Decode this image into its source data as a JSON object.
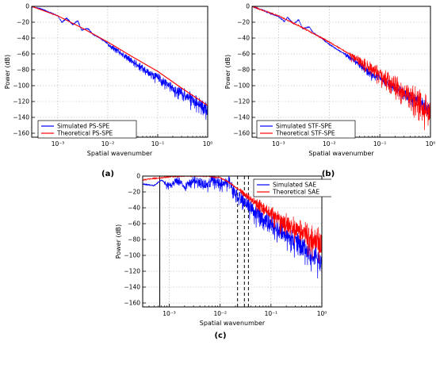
{
  "chart_data": [
    {
      "type": "line",
      "panel_label": "(a)",
      "xlabel": "Spatial wavenumber",
      "ylabel": "Power (dB)",
      "xscale": "log",
      "xlim": [
        0.0003,
        1.0
      ],
      "ylim": [
        -165,
        0
      ],
      "grid": true,
      "legend_position": "lower-left",
      "x_ticks": [
        {
          "value": 0.001,
          "label": "10⁻³"
        },
        {
          "value": 0.01,
          "label": "10⁻²"
        },
        {
          "value": 0.1,
          "label": "10⁻¹"
        },
        {
          "value": 1.0,
          "label": "10⁰"
        }
      ],
      "y_ticks": [
        {
          "value": 0,
          "label": "0"
        },
        {
          "value": -20,
          "label": "−20"
        },
        {
          "value": -40,
          "label": "−40"
        },
        {
          "value": -60,
          "label": "−60"
        },
        {
          "value": -80,
          "label": "−80"
        },
        {
          "value": -100,
          "label": "−100"
        },
        {
          "value": -120,
          "label": "−120"
        },
        {
          "value": -140,
          "label": "−140"
        },
        {
          "value": -160,
          "label": "−160"
        }
      ],
      "series": [
        {
          "name": "Simulated PS-SPE",
          "color": "#0000ff",
          "style": "noisy",
          "x": [
            0.0003,
            0.0005,
            0.0007,
            0.001,
            0.0012,
            0.0015,
            0.002,
            0.0025,
            0.003,
            0.004,
            0.005,
            0.007,
            0.01,
            0.015,
            0.02,
            0.03,
            0.05,
            0.07,
            0.1,
            0.15,
            0.2,
            0.3,
            0.5,
            0.7,
            1.0
          ],
          "y": [
            0,
            -4,
            -8,
            -12,
            -20,
            -15,
            -23,
            -18,
            -30,
            -28,
            -35,
            -40,
            -47,
            -55,
            -60,
            -68,
            -77,
            -85,
            -88,
            -96,
            -102,
            -108,
            -116,
            -122,
            -130
          ],
          "noise_start": 0.01,
          "noise_amp_start": 3,
          "noise_amp_end": 14
        },
        {
          "name": "Theoretical PS-SPE",
          "color": "#ff0000",
          "x": [
            0.0003,
            0.001,
            0.003,
            0.01,
            0.03,
            0.1,
            0.3,
            1.0
          ],
          "y": [
            0,
            -12,
            -27,
            -45,
            -63,
            -82,
            -103,
            -125
          ]
        }
      ]
    },
    {
      "type": "line",
      "panel_label": "(b)",
      "xlabel": "Spatial wavenumber",
      "ylabel": "Power (dB)",
      "xscale": "log",
      "xlim": [
        0.0003,
        1.0
      ],
      "ylim": [
        -165,
        0
      ],
      "grid": true,
      "legend_position": "lower-left",
      "x_ticks": [
        {
          "value": 0.001,
          "label": "10⁻³"
        },
        {
          "value": 0.01,
          "label": "10⁻²"
        },
        {
          "value": 0.1,
          "label": "10⁻¹"
        },
        {
          "value": 1.0,
          "label": "10⁰"
        }
      ],
      "y_ticks": [
        {
          "value": 0,
          "label": "0"
        },
        {
          "value": -20,
          "label": "−20"
        },
        {
          "value": -40,
          "label": "−40"
        },
        {
          "value": -60,
          "label": "−60"
        },
        {
          "value": -80,
          "label": "−80"
        },
        {
          "value": -100,
          "label": "−100"
        },
        {
          "value": -120,
          "label": "−120"
        },
        {
          "value": -140,
          "label": "−140"
        },
        {
          "value": -160,
          "label": "−160"
        }
      ],
      "series": [
        {
          "name": "Simulated STF-SPE",
          "color": "#0000ff",
          "style": "noisy",
          "x": [
            0.0003,
            0.0005,
            0.0007,
            0.001,
            0.0013,
            0.0015,
            0.002,
            0.0025,
            0.003,
            0.004,
            0.005,
            0.007,
            0.01,
            0.015,
            0.02,
            0.03,
            0.05,
            0.07,
            0.1,
            0.15,
            0.2,
            0.3,
            0.5,
            0.7,
            1.0
          ],
          "y": [
            0,
            -5,
            -9,
            -13,
            -19,
            -14,
            -22,
            -17,
            -28,
            -26,
            -34,
            -40,
            -48,
            -55,
            -60,
            -67,
            -78,
            -86,
            -88,
            -97,
            -102,
            -108,
            -116,
            -122,
            -130
          ],
          "noise_start": 0.02,
          "noise_amp_start": 4,
          "noise_amp_end": 12
        },
        {
          "name": "Theoretical STF-SPE",
          "color": "#ff0000",
          "style": "noisy",
          "x": [
            0.0003,
            0.001,
            0.003,
            0.01,
            0.03,
            0.1,
            0.3,
            1.0
          ],
          "y": [
            0,
            -12,
            -27,
            -45,
            -63,
            -84,
            -105,
            -128
          ],
          "noise_start": 0.025,
          "noise_amp_start": 6,
          "noise_amp_end": 28,
          "noise_bias": -1
        }
      ]
    },
    {
      "type": "line",
      "panel_label": "(c)",
      "xlabel": "Spatial wavenumber",
      "ylabel": "Power (dB)",
      "xscale": "log",
      "xlim": [
        0.0003,
        1.0
      ],
      "ylim": [
        -165,
        0
      ],
      "grid": true,
      "legend_position": "top-right",
      "x_ticks": [
        {
          "value": 0.001,
          "label": "10⁻³"
        },
        {
          "value": 0.01,
          "label": "10⁻²"
        },
        {
          "value": 0.1,
          "label": "10⁻¹"
        },
        {
          "value": 1.0,
          "label": "10⁰"
        }
      ],
      "y_ticks": [
        {
          "value": 0,
          "label": "0"
        },
        {
          "value": -20,
          "label": "−20"
        },
        {
          "value": -40,
          "label": "−40"
        },
        {
          "value": -60,
          "label": "−60"
        },
        {
          "value": -80,
          "label": "−80"
        },
        {
          "value": -100,
          "label": "−100"
        },
        {
          "value": -120,
          "label": "−120"
        },
        {
          "value": -140,
          "label": "−140"
        },
        {
          "value": -160,
          "label": "−160"
        }
      ],
      "vlines": [
        {
          "x": 0.00065,
          "style": "solid",
          "color": "#000000"
        },
        {
          "x": 0.022,
          "style": "dashed",
          "color": "#000000"
        },
        {
          "x": 0.03,
          "style": "dashed",
          "color": "#000000"
        },
        {
          "x": 0.036,
          "style": "dashed",
          "color": "#000000"
        }
      ],
      "series": [
        {
          "name": "Simulated SAE",
          "color": "#0000ff",
          "style": "noisy",
          "x": [
            0.0003,
            0.0005,
            0.0007,
            0.001,
            0.0015,
            0.002,
            0.003,
            0.005,
            0.007,
            0.01,
            0.015,
            0.02,
            0.025,
            0.03,
            0.04,
            0.05,
            0.07,
            0.1,
            0.15,
            0.2,
            0.3,
            0.5,
            0.7,
            1.0
          ],
          "y": [
            -10,
            -12,
            -5,
            -12,
            -3,
            -13,
            -4,
            -10,
            -3,
            -8,
            -5,
            -20,
            -26,
            -30,
            -38,
            -45,
            -50,
            -58,
            -65,
            -72,
            -80,
            -90,
            -98,
            -108
          ],
          "noise_start": 0.0008,
          "noise_amp_start": 5,
          "noise_amp_end": 22
        },
        {
          "name": "Theoretical SAE",
          "color": "#ff0000",
          "style": "noisy",
          "x": [
            0.0003,
            0.0005,
            0.001,
            0.002,
            0.005,
            0.01,
            0.015,
            0.02,
            0.03,
            0.05,
            0.1,
            0.2,
            0.5,
            1.0
          ],
          "y": [
            -5,
            -3,
            -1,
            0,
            0,
            -2,
            -8,
            -14,
            -22,
            -32,
            -45,
            -57,
            -72,
            -82
          ],
          "noise_start": 0.025,
          "noise_amp_start": 5,
          "noise_amp_end": 28,
          "noise_bias": -1
        }
      ]
    }
  ]
}
